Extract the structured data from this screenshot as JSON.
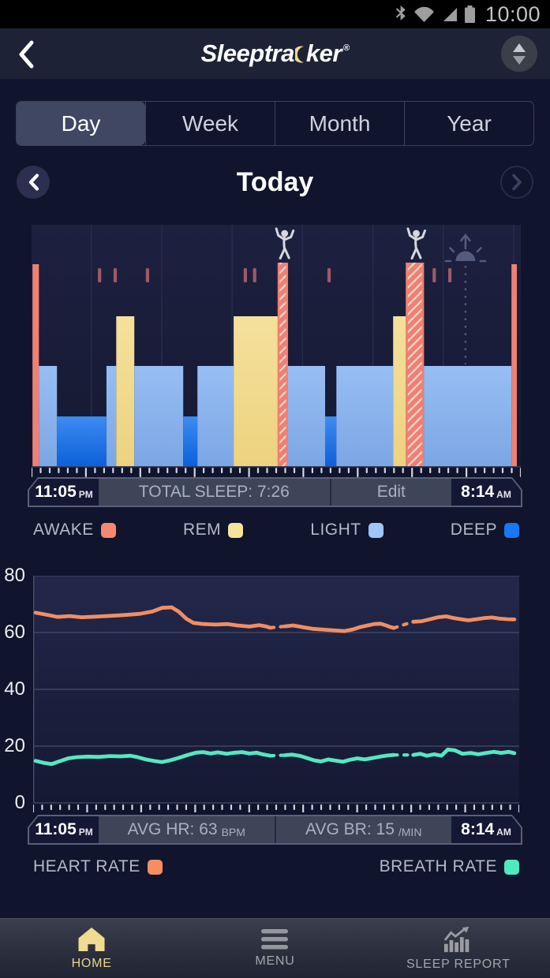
{
  "status_bar": {
    "time": "10:00",
    "icons": [
      "bluetooth-icon",
      "wifi-icon",
      "cellular-signal-icon",
      "battery-icon"
    ]
  },
  "header": {
    "brand_pre": "Sleeptra",
    "brand_post": "ker",
    "registered": "®",
    "brand_full": "Sleeptracker®",
    "icons": [
      "back-chevron-icon",
      "crescent-moon-icon",
      "sort-arrows-icon"
    ]
  },
  "tabs": [
    {
      "label": "Day",
      "selected": true
    },
    {
      "label": "Week",
      "selected": false
    },
    {
      "label": "Month",
      "selected": false
    },
    {
      "label": "Year",
      "selected": false
    }
  ],
  "date_nav": {
    "title": "Today",
    "icons": [
      "chevron-left-icon",
      "chevron-right-icon"
    ]
  },
  "sleep_bar": {
    "start": "11:05",
    "start_suffix": "PM",
    "total_label": "TOTAL SLEEP: 7:26",
    "edit_label": "Edit",
    "end": "8:14",
    "end_suffix": "AM"
  },
  "sleep_legend": [
    {
      "label": "AWAKE",
      "color": "#f58871"
    },
    {
      "label": "REM",
      "color": "#f7e49c"
    },
    {
      "label": "LIGHT",
      "color": "#a2c5f6"
    },
    {
      "label": "DEEP",
      "color": "#1877f3"
    }
  ],
  "vitals_bar": {
    "start": "11:05",
    "start_suffix": "PM",
    "avg_hr_label": "AVG HR: 63",
    "hr_unit": "BPM",
    "avg_br_label": "AVG BR: 15",
    "br_unit": "/MIN",
    "end": "8:14",
    "end_suffix": "AM"
  },
  "vitals_legend": [
    {
      "label": "HEART RATE",
      "color": "#f68e63"
    },
    {
      "label": "BREATH RATE",
      "color": "#4deac0"
    }
  ],
  "bottom_nav": [
    {
      "label": "HOME",
      "icon": "home-icon",
      "active": true
    },
    {
      "label": "MENU",
      "icon": "menu-icon",
      "active": false
    },
    {
      "label": "SLEEP REPORT",
      "icon": "sleep-report-icon",
      "active": false
    }
  ],
  "chart_data": [
    {
      "type": "bar",
      "subtype": "sleep-hypnogram",
      "x_axis": {
        "start": "11:05 PM",
        "end": "8:14 AM"
      },
      "total_sleep": "7:26",
      "stages_order": [
        "AWAKE",
        "REM",
        "LIGHT",
        "DEEP"
      ],
      "colors": {
        "awake": "#ef8173",
        "rem": "#f3dd92",
        "light": "#8db7ef",
        "deep": "#1b74ea",
        "brief_awake_mark": "#9d5a66"
      },
      "segments": [
        {
          "stage": "awake",
          "x0": 0.002,
          "x1": 0.015
        },
        {
          "stage": "light",
          "x0": 0.015,
          "x1": 0.052
        },
        {
          "stage": "deep",
          "x0": 0.052,
          "x1": 0.153
        },
        {
          "stage": "light",
          "x0": 0.153,
          "x1": 0.173
        },
        {
          "stage": "rem",
          "x0": 0.173,
          "x1": 0.21
        },
        {
          "stage": "light",
          "x0": 0.21,
          "x1": 0.31
        },
        {
          "stage": "deep",
          "x0": 0.31,
          "x1": 0.339
        },
        {
          "stage": "light",
          "x0": 0.339,
          "x1": 0.413
        },
        {
          "stage": "rem",
          "x0": 0.413,
          "x1": 0.503
        },
        {
          "stage": "bed_exit",
          "x0": 0.503,
          "x1": 0.524
        },
        {
          "stage": "light",
          "x0": 0.524,
          "x1": 0.6
        },
        {
          "stage": "deep",
          "x0": 0.6,
          "x1": 0.623
        },
        {
          "stage": "light",
          "x0": 0.623,
          "x1": 0.739
        },
        {
          "stage": "rem",
          "x0": 0.739,
          "x1": 0.765
        },
        {
          "stage": "bed_exit",
          "x0": 0.765,
          "x1": 0.802
        },
        {
          "stage": "light",
          "x0": 0.802,
          "x1": 0.981
        },
        {
          "stage": "awake",
          "x0": 0.981,
          "x1": 0.992
        }
      ],
      "brief_awake_marks": [
        0.139,
        0.171,
        0.237,
        0.437,
        0.456,
        0.608,
        0.823,
        0.855
      ],
      "out_of_bed_events": [
        0.514,
        0.783
      ],
      "wake_window_marker": 0.887
    },
    {
      "type": "line",
      "subtype": "vitals",
      "ylim": [
        0,
        80
      ],
      "yticks": [
        80,
        60,
        40,
        20,
        0
      ],
      "x_axis": {
        "start": "11:05 PM",
        "end": "8:14 AM"
      },
      "grid": true,
      "series": [
        {
          "name": "HEART RATE",
          "unit": "BPM",
          "avg": 63,
          "color": "#f08e63",
          "segments": [
            [
              [
                0.005,
                67.0
              ],
              [
                0.03,
                66.2
              ],
              [
                0.05,
                65.5
              ],
              [
                0.075,
                65.8
              ],
              [
                0.1,
                65.4
              ],
              [
                0.13,
                65.6
              ],
              [
                0.16,
                65.9
              ],
              [
                0.19,
                66.2
              ],
              [
                0.22,
                66.6
              ],
              [
                0.245,
                67.4
              ],
              [
                0.265,
                68.7
              ],
              [
                0.285,
                68.9
              ],
              [
                0.3,
                67.3
              ],
              [
                0.315,
                64.9
              ],
              [
                0.33,
                63.4
              ],
              [
                0.35,
                63.0
              ],
              [
                0.375,
                62.8
              ],
              [
                0.4,
                63.0
              ],
              [
                0.42,
                62.5
              ],
              [
                0.445,
                62.1
              ],
              [
                0.465,
                62.6
              ],
              [
                0.478,
                62.2
              ],
              [
                0.488,
                61.7
              ]
            ],
            [
              [
                0.518,
                62.2
              ],
              [
                0.535,
                62.5
              ],
              [
                0.555,
                61.9
              ],
              [
                0.575,
                61.3
              ],
              [
                0.6,
                61.0
              ],
              [
                0.625,
                60.7
              ],
              [
                0.64,
                60.5
              ],
              [
                0.658,
                61.1
              ],
              [
                0.672,
                61.9
              ],
              [
                0.688,
                62.5
              ],
              [
                0.702,
                63.0
              ],
              [
                0.715,
                63.1
              ],
              [
                0.726,
                62.5
              ],
              [
                0.736,
                61.9
              ],
              [
                0.742,
                61.6
              ]
            ],
            [
              [
                0.782,
                63.8
              ],
              [
                0.8,
                64.0
              ],
              [
                0.817,
                64.7
              ],
              [
                0.833,
                65.4
              ],
              [
                0.85,
                65.7
              ],
              [
                0.865,
                65.1
              ],
              [
                0.88,
                64.7
              ],
              [
                0.895,
                64.3
              ],
              [
                0.912,
                64.7
              ],
              [
                0.928,
                65.1
              ],
              [
                0.944,
                65.3
              ],
              [
                0.96,
                64.9
              ],
              [
                0.976,
                64.7
              ],
              [
                0.99,
                64.6
              ]
            ]
          ]
        },
        {
          "name": "BREATH RATE",
          "unit": "/MIN",
          "avg": 15,
          "color": "#54e8c2",
          "segments": [
            [
              [
                0.005,
                14.8
              ],
              [
                0.022,
                14.1
              ],
              [
                0.038,
                13.7
              ],
              [
                0.055,
                14.7
              ],
              [
                0.072,
                15.7
              ],
              [
                0.09,
                16.1
              ],
              [
                0.112,
                16.3
              ],
              [
                0.135,
                16.2
              ],
              [
                0.158,
                16.5
              ],
              [
                0.18,
                16.4
              ],
              [
                0.2,
                16.6
              ],
              [
                0.215,
                16.1
              ],
              [
                0.23,
                15.4
              ],
              [
                0.248,
                14.8
              ],
              [
                0.265,
                14.4
              ],
              [
                0.282,
                15.0
              ],
              [
                0.3,
                15.9
              ],
              [
                0.318,
                16.9
              ],
              [
                0.335,
                17.7
              ],
              [
                0.35,
                17.9
              ],
              [
                0.365,
                17.4
              ],
              [
                0.38,
                17.8
              ],
              [
                0.398,
                17.3
              ],
              [
                0.415,
                17.7
              ],
              [
                0.43,
                17.9
              ],
              [
                0.445,
                17.4
              ],
              [
                0.46,
                17.7
              ],
              [
                0.472,
                17.1
              ],
              [
                0.488,
                16.6
              ]
            ],
            [
              [
                0.518,
                16.8
              ],
              [
                0.532,
                17.0
              ],
              [
                0.548,
                16.6
              ],
              [
                0.563,
                15.8
              ],
              [
                0.578,
                15.0
              ],
              [
                0.592,
                14.6
              ],
              [
                0.607,
                15.3
              ],
              [
                0.622,
                14.9
              ],
              [
                0.637,
                14.5
              ],
              [
                0.652,
                15.2
              ],
              [
                0.667,
                15.7
              ],
              [
                0.682,
                15.3
              ],
              [
                0.698,
                15.8
              ],
              [
                0.714,
                16.3
              ],
              [
                0.729,
                16.7
              ],
              [
                0.742,
                16.9
              ]
            ],
            [
              [
                0.782,
                16.9
              ],
              [
                0.796,
                17.3
              ],
              [
                0.81,
                16.6
              ],
              [
                0.825,
                17.1
              ],
              [
                0.84,
                16.6
              ],
              [
                0.853,
                18.8
              ],
              [
                0.868,
                18.5
              ],
              [
                0.883,
                17.3
              ],
              [
                0.9,
                17.6
              ],
              [
                0.916,
                17.1
              ],
              [
                0.932,
                17.6
              ],
              [
                0.948,
                18.0
              ],
              [
                0.963,
                17.6
              ],
              [
                0.978,
                18.0
              ],
              [
                0.99,
                17.5
              ]
            ]
          ]
        }
      ]
    }
  ]
}
